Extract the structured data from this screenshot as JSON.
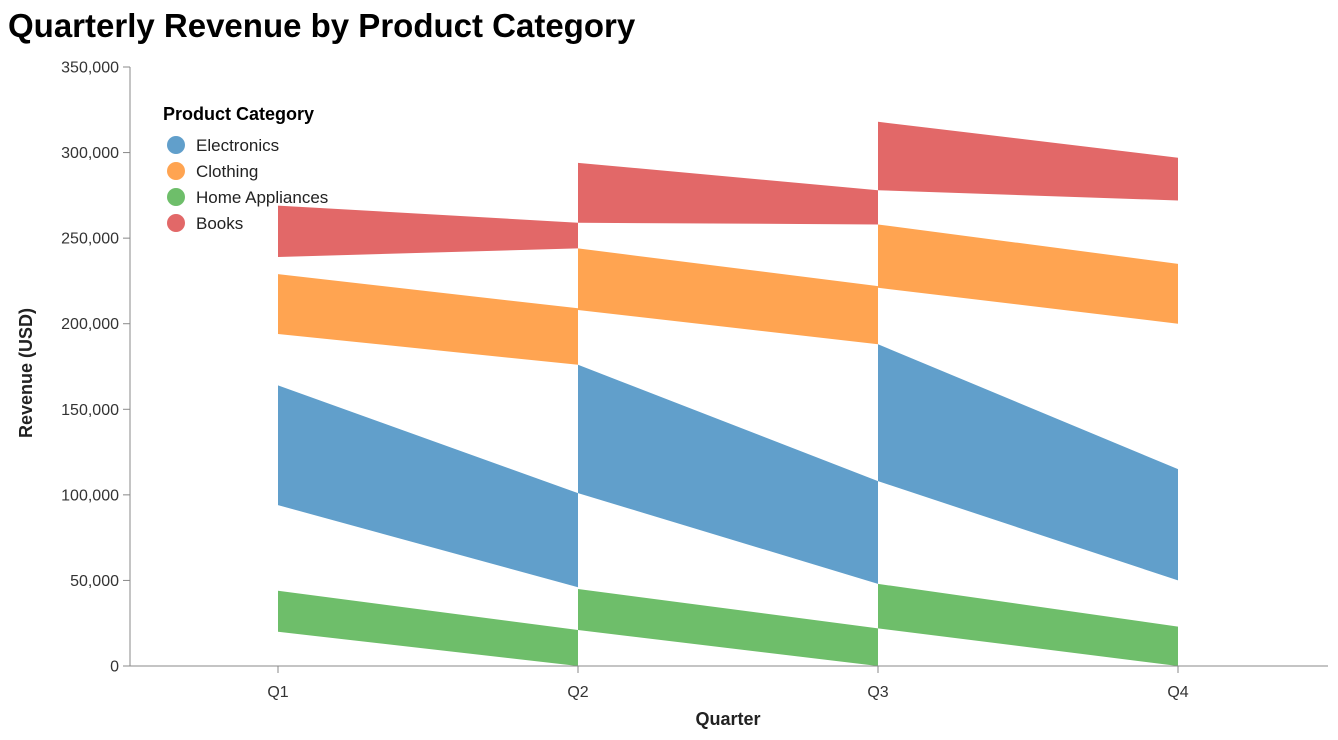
{
  "chart_data": {
    "type": "area",
    "title": "Quarterly Revenue by Product Category",
    "xlabel": "Quarter",
    "ylabel": "Revenue (USD)",
    "categories": [
      "Q1",
      "Q2",
      "Q3",
      "Q4"
    ],
    "ylim": [
      0,
      350000
    ],
    "yticks": [
      0,
      50000,
      100000,
      150000,
      200000,
      250000,
      300000,
      350000
    ],
    "ytick_labels": [
      "0",
      "50,000",
      "100,000",
      "150,000",
      "200,000",
      "250,000",
      "300,000",
      "350,000"
    ],
    "grid": false,
    "legend": {
      "title": "Product Category",
      "placement": "top-left"
    },
    "series": [
      {
        "name": "Electronics",
        "color": "#619fcb",
        "bands": [
          {
            "x": "Q1",
            "y0": 94000,
            "y1": 164000
          },
          {
            "x": "Q2",
            "y0": 46000,
            "y1": 101000
          },
          {
            "x": "Q2",
            "y0": 101000,
            "y1": 176000
          },
          {
            "x": "Q3",
            "y0": 48000,
            "y1": 108000
          },
          {
            "x": "Q3",
            "y0": 108000,
            "y1": 188000
          },
          {
            "x": "Q4",
            "y0": 50000,
            "y1": 115000
          }
        ]
      },
      {
        "name": "Clothing",
        "color": "#ffa451",
        "bands": [
          {
            "x": "Q1",
            "y0": 194000,
            "y1": 229000
          },
          {
            "x": "Q2",
            "y0": 176000,
            "y1": 209000
          },
          {
            "x": "Q2",
            "y0": 208000,
            "y1": 244000
          },
          {
            "x": "Q3",
            "y0": 188000,
            "y1": 222000
          },
          {
            "x": "Q3",
            "y0": 221000,
            "y1": 258000
          },
          {
            "x": "Q4",
            "y0": 200000,
            "y1": 235000
          }
        ]
      },
      {
        "name": "Home Appliances",
        "color": "#6ebe6a",
        "bands": [
          {
            "x": "Q1",
            "y0": 20000,
            "y1": 44000
          },
          {
            "x": "Q2",
            "y0": 0,
            "y1": 21000
          },
          {
            "x": "Q2",
            "y0": 21000,
            "y1": 45000
          },
          {
            "x": "Q3",
            "y0": 0,
            "y1": 22000
          },
          {
            "x": "Q3",
            "y0": 22000,
            "y1": 48000
          },
          {
            "x": "Q4",
            "y0": 0,
            "y1": 23000
          }
        ]
      },
      {
        "name": "Books",
        "color": "#e26868",
        "bands": [
          {
            "x": "Q1",
            "y0": 239000,
            "y1": 269000
          },
          {
            "x": "Q2",
            "y0": 244000,
            "y1": 259000
          },
          {
            "x": "Q2",
            "y0": 259000,
            "y1": 294000
          },
          {
            "x": "Q3",
            "y0": 258000,
            "y1": 278000
          },
          {
            "x": "Q3",
            "y0": 278000,
            "y1": 318000
          },
          {
            "x": "Q4",
            "y0": 272000,
            "y1": 297000
          }
        ]
      }
    ]
  }
}
